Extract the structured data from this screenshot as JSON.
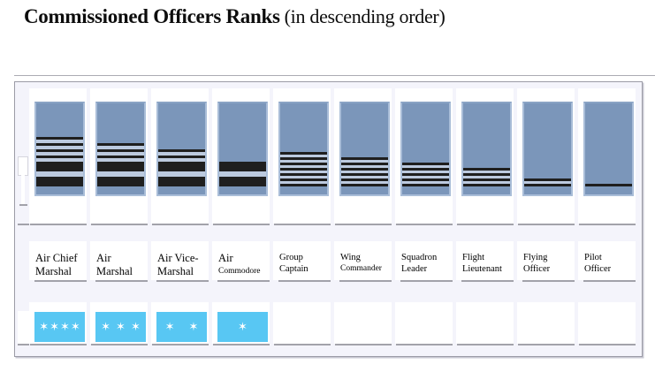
{
  "title": {
    "main": "Commissioned Officers Ranks",
    "suffix": "(in descending order)"
  },
  "ranks": [
    {
      "name": "Air Chief Marshal",
      "label_lines": [
        "Air Chief",
        "Marshal"
      ],
      "insignia": {
        "thin_stripes": 4,
        "thick_stripes": 2
      },
      "stars": 4
    },
    {
      "name": "Air Marshal",
      "label_lines": [
        "Air",
        "Marshal"
      ],
      "insignia": {
        "thin_stripes": 3,
        "thick_stripes": 2
      },
      "stars": 3
    },
    {
      "name": "Air Vice-Marshal",
      "label_lines": [
        "Air Vice-",
        "Marshal"
      ],
      "insignia": {
        "thin_stripes": 2,
        "thick_stripes": 2
      },
      "stars": 2
    },
    {
      "name": "Air Commodore",
      "label_lines": [
        "Air",
        "Commodore"
      ],
      "insignia": {
        "thin_stripes": 0,
        "thick_stripes": 2
      },
      "stars": 1
    },
    {
      "name": "Group Captain",
      "label_lines": [
        "Group",
        "Captain"
      ],
      "insignia": {
        "thin_stripes": 7,
        "thick_stripes": 0
      },
      "stars": 0
    },
    {
      "name": "Wing Commander",
      "label_lines": [
        "Wing",
        "Commander"
      ],
      "insignia": {
        "thin_stripes": 6,
        "thick_stripes": 0
      },
      "stars": 0
    },
    {
      "name": "Squadron Leader",
      "label_lines": [
        "Squadron",
        "Leader"
      ],
      "insignia": {
        "thin_stripes": 5,
        "thick_stripes": 0
      },
      "stars": 0
    },
    {
      "name": "Flight Lieutenant",
      "label_lines": [
        "Flight",
        "Lieutenant"
      ],
      "insignia": {
        "thin_stripes": 4,
        "thick_stripes": 0
      },
      "stars": 0
    },
    {
      "name": "Flying Officer",
      "label_lines": [
        "Flying",
        "Officer"
      ],
      "insignia": {
        "thin_stripes": 2,
        "thick_stripes": 0
      },
      "stars": 0
    },
    {
      "name": "Pilot Officer",
      "label_lines": [
        "Pilot",
        "Officer"
      ],
      "insignia": {
        "thin_stripes": 1,
        "thick_stripes": 0
      },
      "stars": 0
    }
  ],
  "icons": {
    "star": "six-pointed-star",
    "star_glyph": "✶"
  },
  "colors": {
    "flag_blue": "#7b96ba",
    "flag_gap": "#bccadf",
    "flag_edge": "#a9bdd8",
    "stripe_black": "#1f1f1f",
    "star_box_blue": "#58c7f3",
    "star_white": "#ffffff",
    "panel_bg": "#f4f4fb",
    "panel_border": "#9b9ba6",
    "underline_gray": "#a2a2aa"
  }
}
